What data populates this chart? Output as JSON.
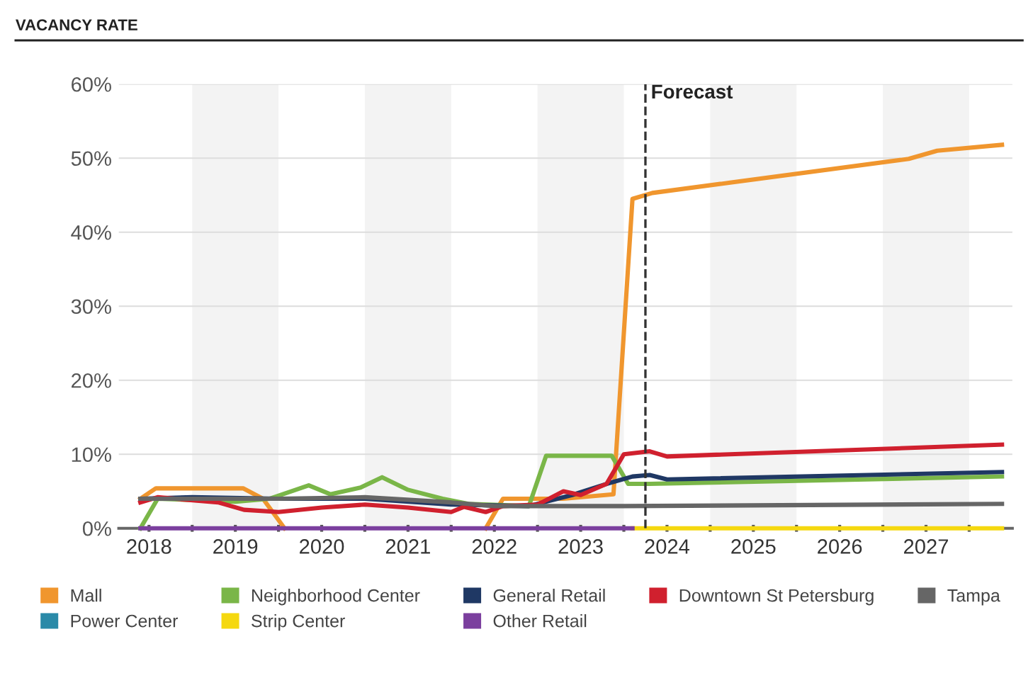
{
  "chart_data": {
    "type": "line",
    "title": "VACANCY RATE",
    "xlim": [
      2018.15,
      2028.5
    ],
    "ylim": [
      0,
      60
    ],
    "yticks": [
      {
        "value": 0,
        "label": "0%"
      },
      {
        "value": 10,
        "label": "10%"
      },
      {
        "value": 20,
        "label": "20%"
      },
      {
        "value": 30,
        "label": "30%"
      },
      {
        "value": 40,
        "label": "40%"
      },
      {
        "value": 50,
        "label": "50%"
      },
      {
        "value": 60,
        "label": "60%"
      }
    ],
    "xticks": [
      {
        "value": 2018.5,
        "label": "2018"
      },
      {
        "value": 2019.5,
        "label": "2019"
      },
      {
        "value": 2020.5,
        "label": "2020"
      },
      {
        "value": 2021.5,
        "label": "2021"
      },
      {
        "value": 2022.5,
        "label": "2022"
      },
      {
        "value": 2023.5,
        "label": "2023"
      },
      {
        "value": 2024.5,
        "label": "2024"
      },
      {
        "value": 2025.5,
        "label": "2025"
      },
      {
        "value": 2026.5,
        "label": "2026"
      },
      {
        "value": 2027.5,
        "label": "2027"
      },
      {
        "value": 2019,
        "label": null
      },
      {
        "value": 2020,
        "label": null
      },
      {
        "value": 2021,
        "label": null
      },
      {
        "value": 2022,
        "label": null
      },
      {
        "value": 2023,
        "label": null
      },
      {
        "value": 2024,
        "label": null
      },
      {
        "value": 2025,
        "label": null
      },
      {
        "value": 2026,
        "label": null
      },
      {
        "value": 2027,
        "label": null
      },
      {
        "value": 2028,
        "label": null
      }
    ],
    "grid": "y",
    "legend": "bottom",
    "marker": "none",
    "line_style": "solid",
    "ref_lines": [
      {
        "axis": "x",
        "value": 2024.25,
        "label": "Forecast",
        "color": "#333333",
        "line_style": "dashed"
      }
    ],
    "bands": [
      {
        "axis": "x",
        "from": 2019,
        "to": 2020,
        "color": "#f3f3f3"
      },
      {
        "axis": "x",
        "from": 2021,
        "to": 2022,
        "color": "#f3f3f3"
      },
      {
        "axis": "x",
        "from": 2023,
        "to": 2024,
        "color": "#f3f3f3"
      },
      {
        "axis": "x",
        "from": 2025,
        "to": 2026,
        "color": "#f3f3f3"
      },
      {
        "axis": "x",
        "from": 2027,
        "to": 2028,
        "color": "#f3f3f3"
      }
    ],
    "series": [
      {
        "name": "Mall",
        "color": "#f0962e",
        "x": [
          2018.4,
          2018.58,
          2019.59,
          2019.82,
          2020.07,
          2021.2,
          2022.4,
          2022.6,
          2023.3,
          2023.88,
          2024.1,
          2024.33,
          2027.3,
          2027.63,
          2028.38
        ],
        "values": [
          4,
          5.4,
          5.4,
          4,
          0,
          null,
          0,
          4,
          4,
          4.6,
          44.5,
          45.3,
          49.9,
          51,
          51.8
        ]
      },
      {
        "name": "Neighborhood Center",
        "color": "#7ab648",
        "x": [
          2018.4,
          2018.6,
          2019.5,
          2019.9,
          2020.35,
          2020.6,
          2020.95,
          2021.2,
          2021.5,
          2021.9,
          2022.2,
          2022.9,
          2023.1,
          2023.86,
          2024.05,
          2024.3,
          2028.38
        ],
        "values": [
          0,
          4,
          3.6,
          4,
          5.8,
          4.6,
          5.5,
          6.9,
          5.2,
          4,
          3.3,
          3,
          9.8,
          9.8,
          6,
          6,
          7
        ]
      },
      {
        "name": "General Retail",
        "color": "#1f3864",
        "x": [
          2018.4,
          2019.0,
          2020.0,
          2021.0,
          2022.0,
          2022.9,
          2023.4,
          2023.8,
          2024.1,
          2024.3,
          2024.5,
          2028.38
        ],
        "values": [
          4,
          4.2,
          4,
          4,
          3.2,
          3,
          4.5,
          6,
          7,
          7.2,
          6.6,
          7.6
        ]
      },
      {
        "name": "Downtown St Petersburg",
        "color": "#d0202e",
        "x": [
          2018.4,
          2018.6,
          2019.3,
          2019.6,
          2020.0,
          2020.5,
          2021.0,
          2021.5,
          2022.0,
          2022.15,
          2022.4,
          2022.6,
          2023.0,
          2023.3,
          2023.5,
          2023.8,
          2024.0,
          2024.3,
          2024.5,
          2028.38
        ],
        "values": [
          3.5,
          4.2,
          3.5,
          2.5,
          2.2,
          2.8,
          3.2,
          2.8,
          2.2,
          2.9,
          2.2,
          3,
          3.2,
          5,
          4.5,
          6,
          10,
          10.4,
          9.7,
          11.3
        ]
      },
      {
        "name": "Tampa",
        "color": "#666666",
        "x": [
          2018.4,
          2019.0,
          2020.0,
          2021.0,
          2022.0,
          2022.5,
          2023.0,
          2024.0,
          2028.38
        ],
        "values": [
          4,
          4,
          4,
          4.2,
          3.5,
          3,
          3,
          3,
          3.3
        ]
      },
      {
        "name": "Power Center",
        "color": "#2a8aa8"
      },
      {
        "name": "Strip Center",
        "color": "#f5d80f",
        "x": [
          2024.1,
          2028.38
        ],
        "values": [
          0,
          0
        ]
      },
      {
        "name": "Other Retail",
        "color": "#7b3f9e",
        "x": [
          2018.4,
          2024.1
        ],
        "values": [
          0,
          0
        ]
      }
    ]
  }
}
